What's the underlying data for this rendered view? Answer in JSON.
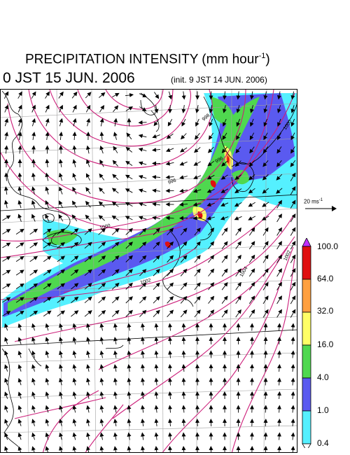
{
  "title": {
    "main": "PRECIPITATION INTENSITY (mm hour",
    "sup": "-1",
    "close": ")",
    "datetime": "0 JST 15 JUN. 2006",
    "init": "(init. 9 JST 14 JUN. 2006)"
  },
  "reference_vector": {
    "label": "20 ms",
    "sup": "-1"
  },
  "legend": {
    "levels": [
      "0.4",
      "1.0",
      "4.0",
      "16.0",
      "32.0",
      "64.0",
      "100.0"
    ],
    "colors": [
      "#ffffff",
      "#55f0ff",
      "#5a5af0",
      "#4fd84f",
      "#ffff66",
      "#ffa040",
      "#e01010",
      "#c030ff"
    ]
  },
  "map": {
    "contour_labels": [
      "1000",
      "1002",
      "996",
      "998",
      "996",
      "1000",
      "1002",
      "1004"
    ],
    "colors": {
      "isobar": "#cc1f7a",
      "coast": "#000000",
      "grid": "#a0a0a0",
      "vector": "#000000"
    }
  }
}
